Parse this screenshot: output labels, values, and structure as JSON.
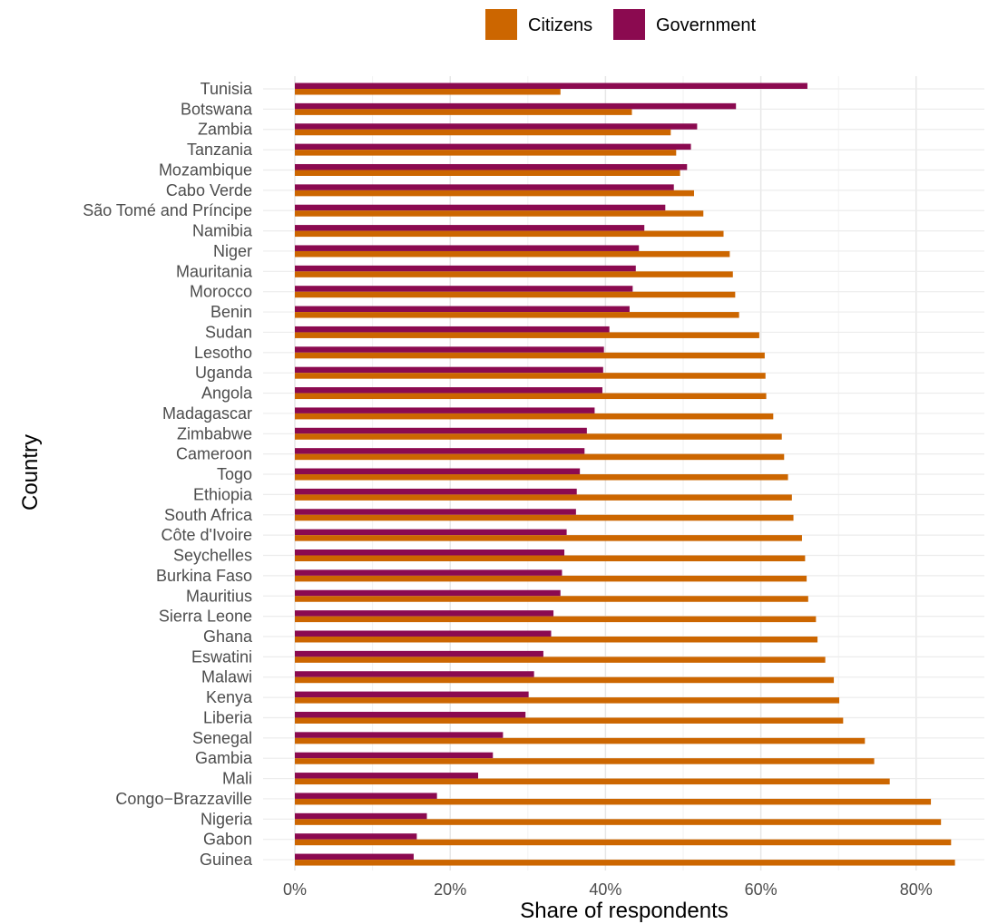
{
  "chart_data": {
    "type": "bar",
    "orientation": "horizontal",
    "xlabel": "Share of respondents",
    "ylabel": "Country",
    "xlim": [
      0,
      0.86
    ],
    "xticks": [
      0,
      0.2,
      0.4,
      0.6,
      0.8
    ],
    "xtick_labels": [
      "0%",
      "20%",
      "40%",
      "60%",
      "80%"
    ],
    "grid": true,
    "legend_position": "top",
    "categories": [
      "Tunisia",
      "Botswana",
      "Zambia",
      "Tanzania",
      "Mozambique",
      "Cabo Verde",
      "São Tomé and Príncipe",
      "Namibia",
      "Niger",
      "Mauritania",
      "Morocco",
      "Benin",
      "Sudan",
      "Lesotho",
      "Uganda",
      "Angola",
      "Madagascar",
      "Zimbabwe",
      "Cameroon",
      "Togo",
      "Ethiopia",
      "South Africa",
      "Côte d'Ivoire",
      "Seychelles",
      "Burkina Faso",
      "Mauritius",
      "Sierra Leone",
      "Ghana",
      "Eswatini",
      "Malawi",
      "Kenya",
      "Liberia",
      "Senegal",
      "Gambia",
      "Mali",
      "Congo−Brazzaville",
      "Nigeria",
      "Gabon",
      "Guinea"
    ],
    "series": [
      {
        "name": "Government",
        "color": "#8B0A50",
        "values": [
          0.66,
          0.568,
          0.518,
          0.51,
          0.505,
          0.488,
          0.477,
          0.45,
          0.443,
          0.439,
          0.435,
          0.431,
          0.405,
          0.398,
          0.397,
          0.396,
          0.386,
          0.376,
          0.373,
          0.367,
          0.363,
          0.362,
          0.35,
          0.347,
          0.344,
          0.342,
          0.333,
          0.33,
          0.32,
          0.308,
          0.301,
          0.297,
          0.268,
          0.255,
          0.236,
          0.183,
          0.17,
          0.157,
          0.153
        ]
      },
      {
        "name": "Citizens",
        "color": "#CC6600",
        "values": [
          0.342,
          0.434,
          0.484,
          0.491,
          0.496,
          0.514,
          0.526,
          0.552,
          0.56,
          0.564,
          0.567,
          0.572,
          0.598,
          0.605,
          0.606,
          0.607,
          0.616,
          0.627,
          0.63,
          0.635,
          0.64,
          0.642,
          0.653,
          0.657,
          0.659,
          0.661,
          0.671,
          0.673,
          0.683,
          0.694,
          0.701,
          0.706,
          0.734,
          0.746,
          0.766,
          0.819,
          0.832,
          0.845,
          0.85
        ]
      }
    ],
    "legend": [
      {
        "name": "Citizens",
        "color": "#CC6600"
      },
      {
        "name": "Government",
        "color": "#8B0A50"
      }
    ]
  }
}
